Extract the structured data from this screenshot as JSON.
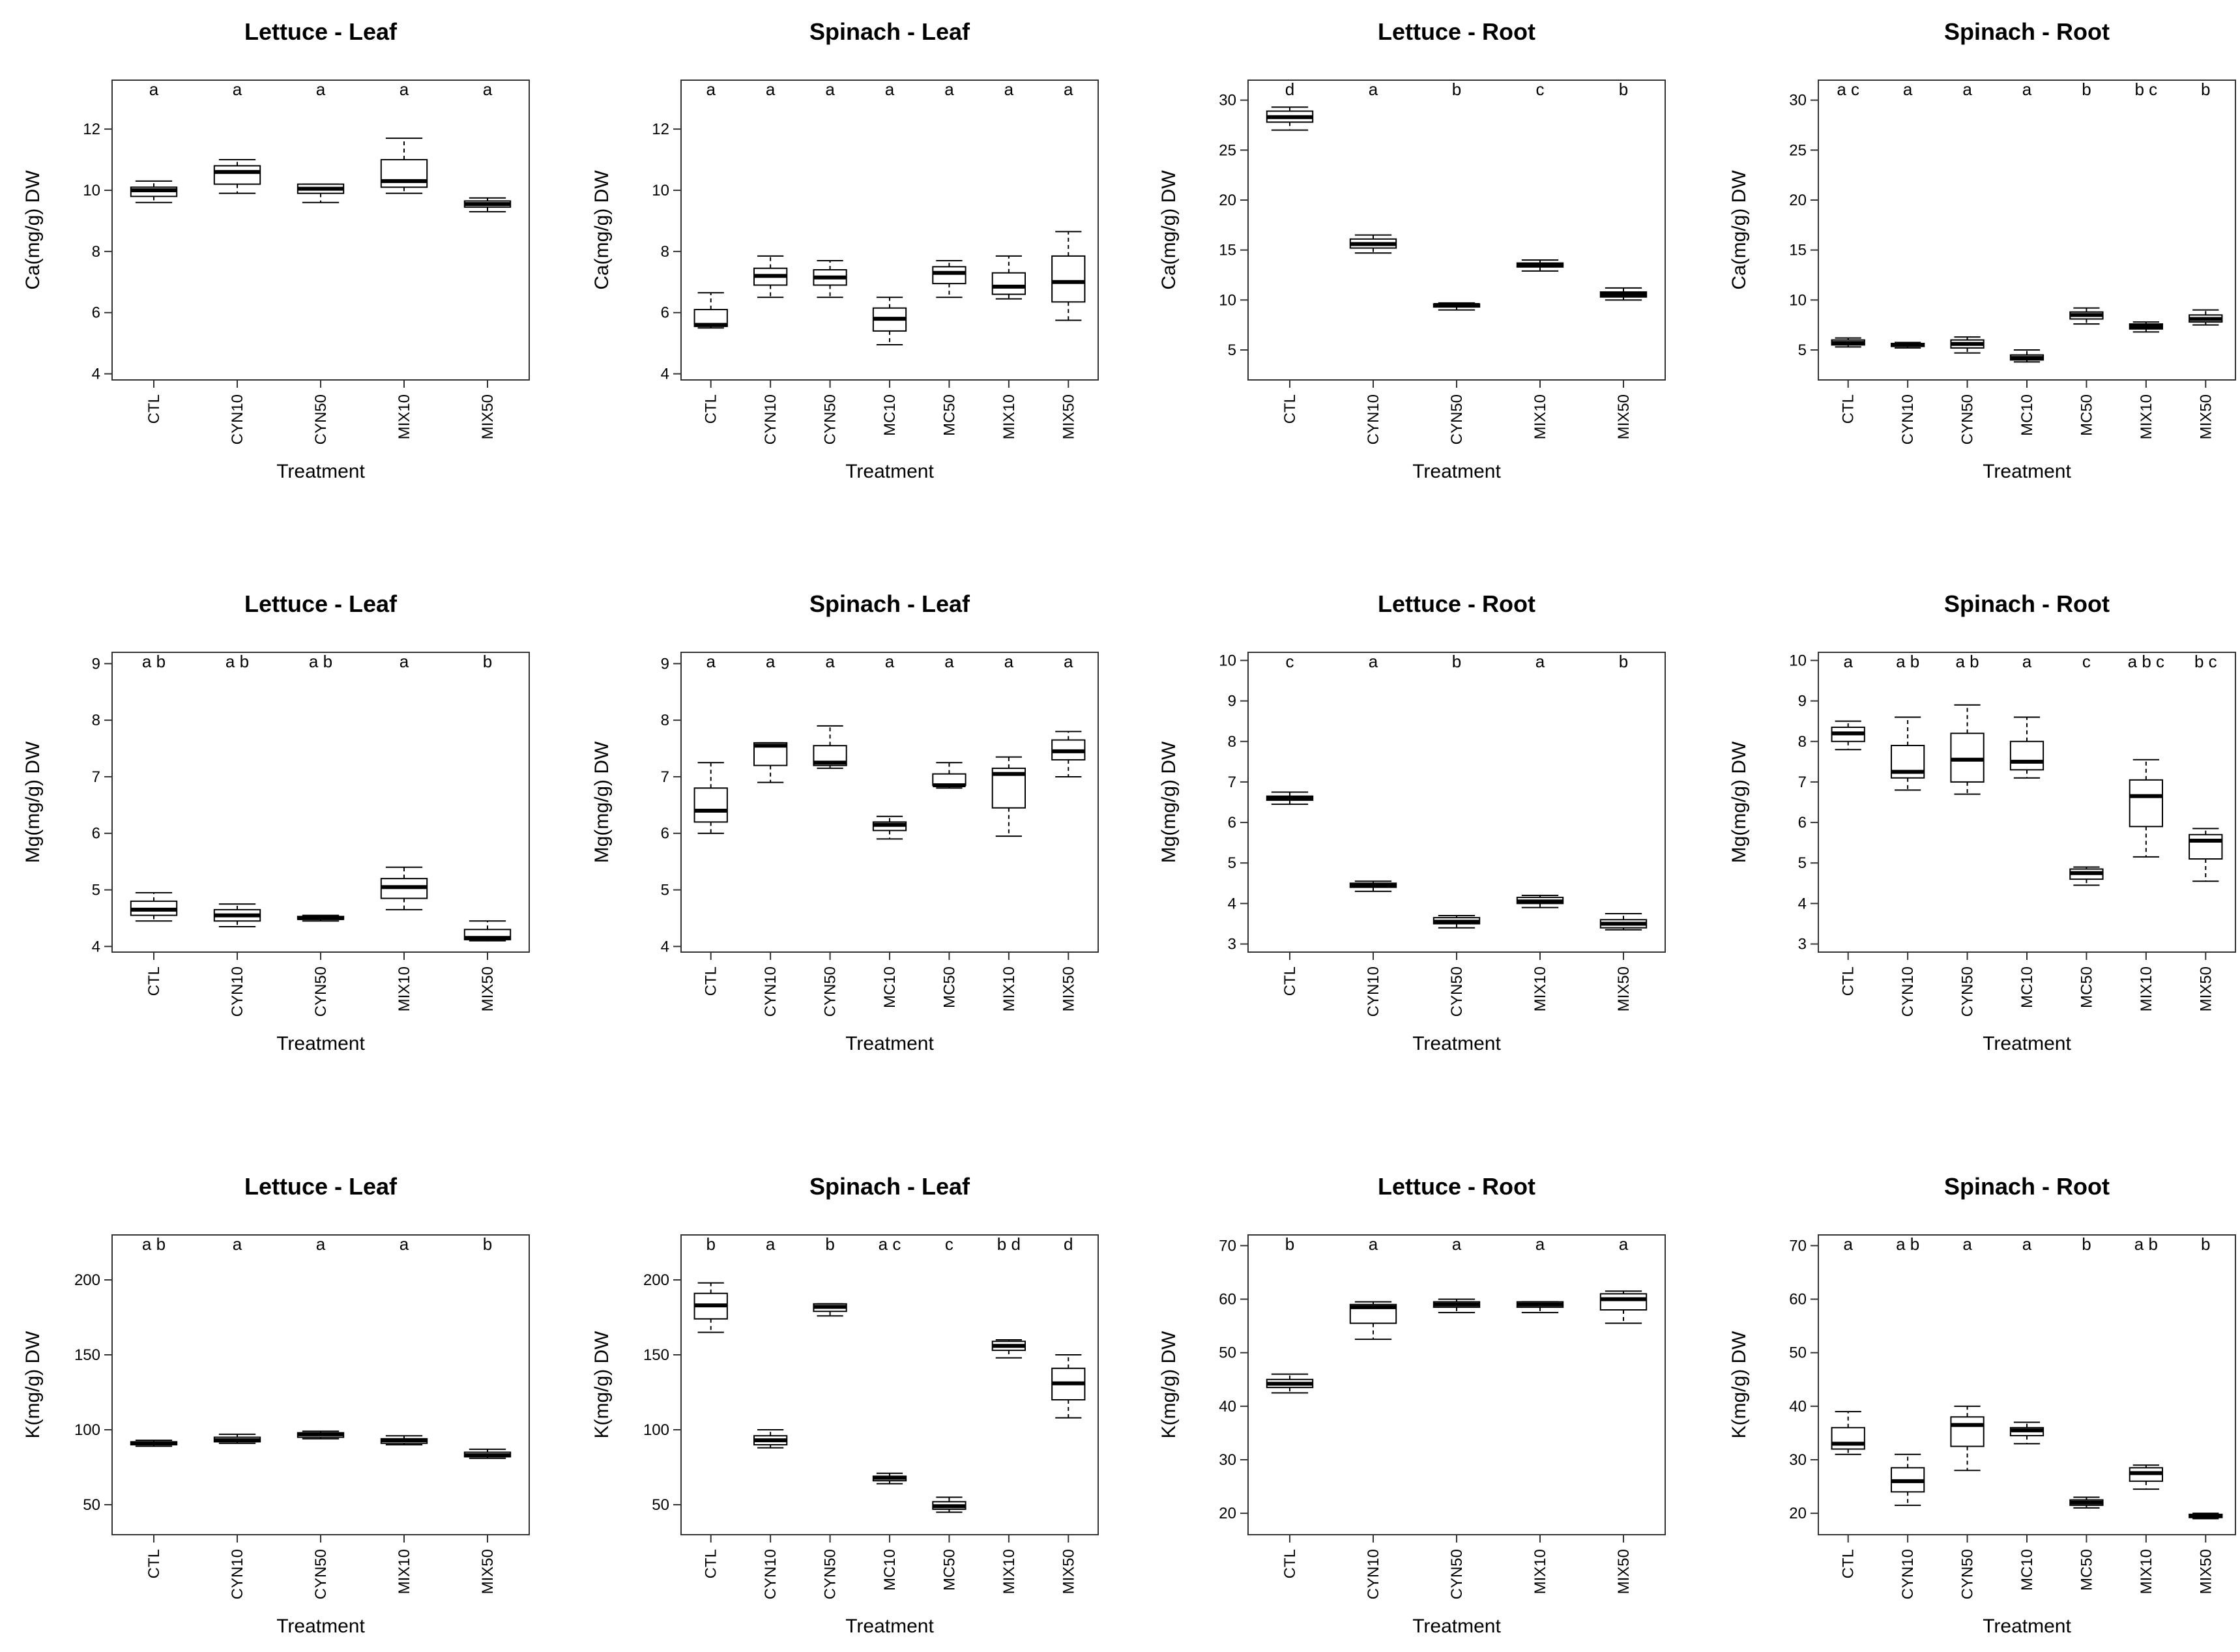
{
  "figure": {
    "description_hidden": ""
  },
  "chart_data": [
    {
      "type": "box",
      "id": "ca-lettuce-leaf",
      "title": "Lettuce - Leaf",
      "xlabel": "Treatment",
      "ylabel": "Ca(mg/g) DW",
      "ylim": [
        3.8,
        13.6
      ],
      "yticks": [
        4,
        6,
        8,
        10,
        12
      ],
      "categories": [
        "CTL",
        "CYN10",
        "CYN50",
        "MIX10",
        "MIX50"
      ],
      "boxes": [
        {
          "min": 9.6,
          "q1": 9.8,
          "median": 10.0,
          "q3": 10.1,
          "max": 10.3
        },
        {
          "min": 9.9,
          "q1": 10.2,
          "median": 10.6,
          "q3": 10.8,
          "max": 11.0
        },
        {
          "min": 9.6,
          "q1": 9.9,
          "median": 10.05,
          "q3": 10.2,
          "max": 10.2
        },
        {
          "min": 9.9,
          "q1": 10.1,
          "median": 10.3,
          "q3": 11.0,
          "max": 11.7
        },
        {
          "min": 9.3,
          "q1": 9.45,
          "median": 9.55,
          "q3": 9.65,
          "max": 9.75
        }
      ],
      "significance": [
        "a",
        "a",
        "a",
        "a",
        "a"
      ]
    },
    {
      "type": "box",
      "id": "ca-spinach-leaf",
      "title": "Spinach - Leaf",
      "xlabel": "Treatment",
      "ylabel": "Ca(mg/g) DW",
      "ylim": [
        3.8,
        13.6
      ],
      "yticks": [
        4,
        6,
        8,
        10,
        12
      ],
      "categories": [
        "CTL",
        "CYN10",
        "CYN50",
        "MC10",
        "MC50",
        "MIX10",
        "MIX50"
      ],
      "boxes": [
        {
          "min": 5.5,
          "q1": 5.55,
          "median": 5.6,
          "q3": 6.1,
          "max": 6.65
        },
        {
          "min": 6.5,
          "q1": 6.9,
          "median": 7.2,
          "q3": 7.45,
          "max": 7.85
        },
        {
          "min": 6.5,
          "q1": 6.9,
          "median": 7.15,
          "q3": 7.4,
          "max": 7.7
        },
        {
          "min": 4.95,
          "q1": 5.4,
          "median": 5.8,
          "q3": 6.15,
          "max": 6.5
        },
        {
          "min": 6.5,
          "q1": 6.95,
          "median": 7.3,
          "q3": 7.5,
          "max": 7.7
        },
        {
          "min": 6.45,
          "q1": 6.6,
          "median": 6.85,
          "q3": 7.3,
          "max": 7.85
        },
        {
          "min": 5.75,
          "q1": 6.35,
          "median": 7.0,
          "q3": 7.85,
          "max": 8.65
        }
      ],
      "significance": [
        "a",
        "a",
        "a",
        "a",
        "a",
        "a",
        "a"
      ]
    },
    {
      "type": "box",
      "id": "ca-lettuce-root",
      "title": "Lettuce - Root",
      "xlabel": "Treatment",
      "ylabel": "Ca(mg/g) DW",
      "ylim": [
        2.0,
        32.0
      ],
      "yticks": [
        5,
        10,
        15,
        20,
        25,
        30
      ],
      "categories": [
        "CTL",
        "CYN10",
        "CYN50",
        "MIX10",
        "MIX50"
      ],
      "boxes": [
        {
          "min": 27.0,
          "q1": 27.8,
          "median": 28.3,
          "q3": 28.9,
          "max": 29.3
        },
        {
          "min": 14.7,
          "q1": 15.2,
          "median": 15.6,
          "q3": 16.1,
          "max": 16.5
        },
        {
          "min": 9.0,
          "q1": 9.3,
          "median": 9.5,
          "q3": 9.6,
          "max": 9.7
        },
        {
          "min": 12.9,
          "q1": 13.3,
          "median": 13.5,
          "q3": 13.7,
          "max": 14.0
        },
        {
          "min": 10.0,
          "q1": 10.3,
          "median": 10.55,
          "q3": 10.8,
          "max": 11.2
        }
      ],
      "significance": [
        "d",
        "a",
        "b",
        "c",
        "b"
      ]
    },
    {
      "type": "box",
      "id": "ca-spinach-root",
      "title": "Spinach - Root",
      "xlabel": "Treatment",
      "ylabel": "Ca(mg/g) DW",
      "ylim": [
        2.0,
        32.0
      ],
      "yticks": [
        5,
        10,
        15,
        20,
        25,
        30
      ],
      "categories": [
        "CTL",
        "CYN10",
        "CYN50",
        "MC10",
        "MC50",
        "MIX10",
        "MIX50"
      ],
      "boxes": [
        {
          "min": 5.3,
          "q1": 5.5,
          "median": 5.7,
          "q3": 6.0,
          "max": 6.2
        },
        {
          "min": 5.2,
          "q1": 5.35,
          "median": 5.5,
          "q3": 5.65,
          "max": 5.75
        },
        {
          "min": 4.7,
          "q1": 5.2,
          "median": 5.6,
          "q3": 6.0,
          "max": 6.3
        },
        {
          "min": 3.8,
          "q1": 4.0,
          "median": 4.2,
          "q3": 4.5,
          "max": 5.0
        },
        {
          "min": 7.6,
          "q1": 8.1,
          "median": 8.5,
          "q3": 8.8,
          "max": 9.2
        },
        {
          "min": 6.8,
          "q1": 7.1,
          "median": 7.35,
          "q3": 7.6,
          "max": 7.8
        },
        {
          "min": 7.5,
          "q1": 7.8,
          "median": 8.1,
          "q3": 8.5,
          "max": 9.0
        }
      ],
      "significance": [
        "a c",
        "a",
        "a",
        "a",
        "b",
        "b c",
        "b"
      ]
    },
    {
      "type": "box",
      "id": "mg-lettuce-leaf",
      "title": "Lettuce - Leaf",
      "xlabel": "Treatment",
      "ylabel": "Mg(mg/g) DW",
      "ylim": [
        3.9,
        9.2
      ],
      "yticks": [
        4,
        5,
        6,
        7,
        8,
        9
      ],
      "categories": [
        "CTL",
        "CYN10",
        "CYN50",
        "MIX10",
        "MIX50"
      ],
      "boxes": [
        {
          "min": 4.45,
          "q1": 4.55,
          "median": 4.65,
          "q3": 4.8,
          "max": 4.95
        },
        {
          "min": 4.35,
          "q1": 4.45,
          "median": 4.55,
          "q3": 4.65,
          "max": 4.75
        },
        {
          "min": 4.45,
          "q1": 4.48,
          "median": 4.5,
          "q3": 4.53,
          "max": 4.55
        },
        {
          "min": 4.65,
          "q1": 4.85,
          "median": 5.05,
          "q3": 5.2,
          "max": 5.4
        },
        {
          "min": 4.1,
          "q1": 4.12,
          "median": 4.15,
          "q3": 4.3,
          "max": 4.45
        }
      ],
      "significance": [
        "a b",
        "a b",
        "a b",
        "a",
        "b"
      ]
    },
    {
      "type": "box",
      "id": "mg-spinach-leaf",
      "title": "Spinach - Leaf",
      "xlabel": "Treatment",
      "ylabel": "Mg(mg/g) DW",
      "ylim": [
        3.9,
        9.2
      ],
      "yticks": [
        4,
        5,
        6,
        7,
        8,
        9
      ],
      "categories": [
        "CTL",
        "CYN10",
        "CYN50",
        "MC10",
        "MC50",
        "MIX10",
        "MIX50"
      ],
      "boxes": [
        {
          "min": 6.0,
          "q1": 6.2,
          "median": 6.4,
          "q3": 6.8,
          "max": 7.25
        },
        {
          "min": 6.9,
          "q1": 7.2,
          "median": 7.55,
          "q3": 7.6,
          "max": 7.6
        },
        {
          "min": 7.15,
          "q1": 7.2,
          "median": 7.25,
          "q3": 7.55,
          "max": 7.9
        },
        {
          "min": 5.9,
          "q1": 6.05,
          "median": 6.15,
          "q3": 6.2,
          "max": 6.3
        },
        {
          "min": 6.8,
          "q1": 6.85,
          "median": 6.85,
          "q3": 7.05,
          "max": 7.25
        },
        {
          "min": 5.95,
          "q1": 6.45,
          "median": 7.05,
          "q3": 7.15,
          "max": 7.35
        },
        {
          "min": 7.0,
          "q1": 7.3,
          "median": 7.45,
          "q3": 7.65,
          "max": 7.8
        }
      ],
      "significance": [
        "a",
        "a",
        "a",
        "a",
        "a",
        "a",
        "a"
      ]
    },
    {
      "type": "box",
      "id": "mg-lettuce-root",
      "title": "Lettuce - Root",
      "xlabel": "Treatment",
      "ylabel": "Mg(mg/g) DW",
      "ylim": [
        2.8,
        10.2
      ],
      "yticks": [
        3,
        4,
        5,
        6,
        7,
        8,
        9,
        10
      ],
      "categories": [
        "CTL",
        "CYN10",
        "CYN50",
        "MIX10",
        "MIX50"
      ],
      "boxes": [
        {
          "min": 6.45,
          "q1": 6.55,
          "median": 6.6,
          "q3": 6.65,
          "max": 6.75
        },
        {
          "min": 4.3,
          "q1": 4.4,
          "median": 4.45,
          "q3": 4.5,
          "max": 4.55
        },
        {
          "min": 3.4,
          "q1": 3.5,
          "median": 3.55,
          "q3": 3.65,
          "max": 3.7
        },
        {
          "min": 3.9,
          "q1": 4.0,
          "median": 4.05,
          "q3": 4.15,
          "max": 4.2
        },
        {
          "min": 3.35,
          "q1": 3.4,
          "median": 3.5,
          "q3": 3.6,
          "max": 3.75
        }
      ],
      "significance": [
        "c",
        "a",
        "b",
        "a",
        "b"
      ]
    },
    {
      "type": "box",
      "id": "mg-spinach-root",
      "title": "Spinach - Root",
      "xlabel": "Treatment",
      "ylabel": "Mg(mg/g) DW",
      "ylim": [
        2.8,
        10.2
      ],
      "yticks": [
        3,
        4,
        5,
        6,
        7,
        8,
        9,
        10
      ],
      "categories": [
        "CTL",
        "CYN10",
        "CYN50",
        "MC10",
        "MC50",
        "MIX10",
        "MIX50"
      ],
      "boxes": [
        {
          "min": 7.8,
          "q1": 8.0,
          "median": 8.2,
          "q3": 8.35,
          "max": 8.5
        },
        {
          "min": 6.8,
          "q1": 7.1,
          "median": 7.25,
          "q3": 7.9,
          "max": 8.6
        },
        {
          "min": 6.7,
          "q1": 7.0,
          "median": 7.55,
          "q3": 8.2,
          "max": 8.9
        },
        {
          "min": 7.1,
          "q1": 7.3,
          "median": 7.5,
          "q3": 8.0,
          "max": 8.6
        },
        {
          "min": 4.45,
          "q1": 4.6,
          "median": 4.75,
          "q3": 4.85,
          "max": 4.9
        },
        {
          "min": 5.15,
          "q1": 5.9,
          "median": 6.65,
          "q3": 7.05,
          "max": 7.55
        },
        {
          "min": 4.55,
          "q1": 5.1,
          "median": 5.55,
          "q3": 5.7,
          "max": 5.85
        }
      ],
      "significance": [
        "a",
        "a b",
        "a b",
        "a",
        "c",
        "a b c",
        "b c"
      ]
    },
    {
      "type": "box",
      "id": "k-lettuce-leaf",
      "title": "Lettuce - Leaf",
      "xlabel": "Treatment",
      "ylabel": "K(mg/g) DW",
      "ylim": [
        30,
        230
      ],
      "yticks": [
        50,
        100,
        150,
        200
      ],
      "categories": [
        "CTL",
        "CYN10",
        "CYN50",
        "MIX10",
        "MIX50"
      ],
      "boxes": [
        {
          "min": 89,
          "q1": 90,
          "median": 91,
          "q3": 92,
          "max": 93
        },
        {
          "min": 91,
          "q1": 92,
          "median": 93,
          "q3": 95,
          "max": 97
        },
        {
          "min": 94,
          "q1": 95,
          "median": 97,
          "q3": 98,
          "max": 99
        },
        {
          "min": 90,
          "q1": 91,
          "median": 93,
          "q3": 94,
          "max": 96
        },
        {
          "min": 81,
          "q1": 82,
          "median": 83,
          "q3": 85,
          "max": 87
        }
      ],
      "significance": [
        "a b",
        "a",
        "a",
        "a",
        "b"
      ]
    },
    {
      "type": "box",
      "id": "k-spinach-leaf",
      "title": "Spinach - Leaf",
      "xlabel": "Treatment",
      "ylabel": "K(mg/g) DW",
      "ylim": [
        30,
        230
      ],
      "yticks": [
        50,
        100,
        150,
        200
      ],
      "categories": [
        "CTL",
        "CYN10",
        "CYN50",
        "MC10",
        "MC50",
        "MIX10",
        "MIX50"
      ],
      "boxes": [
        {
          "min": 165,
          "q1": 174,
          "median": 183,
          "q3": 191,
          "max": 198
        },
        {
          "min": 88,
          "q1": 90,
          "median": 93,
          "q3": 96,
          "max": 100
        },
        {
          "min": 176,
          "q1": 179,
          "median": 182,
          "q3": 184,
          "max": 184
        },
        {
          "min": 64,
          "q1": 66,
          "median": 68,
          "q3": 69,
          "max": 71
        },
        {
          "min": 45,
          "q1": 47,
          "median": 49,
          "q3": 52,
          "max": 55
        },
        {
          "min": 148,
          "q1": 153,
          "median": 156,
          "q3": 159,
          "max": 160
        },
        {
          "min": 108,
          "q1": 120,
          "median": 131,
          "q3": 141,
          "max": 150
        }
      ],
      "significance": [
        "b",
        "a",
        "b",
        "a c",
        "c",
        "b d",
        "d"
      ]
    },
    {
      "type": "box",
      "id": "k-lettuce-root",
      "title": "Lettuce - Root",
      "xlabel": "Treatment",
      "ylabel": "K(mg/g) DW",
      "ylim": [
        16,
        72
      ],
      "yticks": [
        20,
        30,
        40,
        50,
        60,
        70
      ],
      "categories": [
        "CTL",
        "CYN10",
        "CYN50",
        "MIX10",
        "MIX50"
      ],
      "boxes": [
        {
          "min": 42.5,
          "q1": 43.5,
          "median": 44.2,
          "q3": 45,
          "max": 46
        },
        {
          "min": 52.5,
          "q1": 55.5,
          "median": 58.5,
          "q3": 59,
          "max": 59.5
        },
        {
          "min": 57.5,
          "q1": 58.5,
          "median": 59,
          "q3": 59.5,
          "max": 60
        },
        {
          "min": 57.5,
          "q1": 58.5,
          "median": 59,
          "q3": 59.5,
          "max": 59.5
        },
        {
          "min": 55.5,
          "q1": 58,
          "median": 60,
          "q3": 61,
          "max": 61.5
        }
      ],
      "significance": [
        "b",
        "a",
        "a",
        "a",
        "a"
      ]
    },
    {
      "type": "box",
      "id": "k-spinach-root",
      "title": "Spinach - Root",
      "xlabel": "Treatment",
      "ylabel": "K(mg/g) DW",
      "ylim": [
        16,
        72
      ],
      "yticks": [
        20,
        30,
        40,
        50,
        60,
        70
      ],
      "categories": [
        "CTL",
        "CYN10",
        "CYN50",
        "MC10",
        "MC50",
        "MIX10",
        "MIX50"
      ],
      "boxes": [
        {
          "min": 31,
          "q1": 32,
          "median": 33,
          "q3": 36,
          "max": 39
        },
        {
          "min": 21.5,
          "q1": 24,
          "median": 26,
          "q3": 28.5,
          "max": 31
        },
        {
          "min": 28,
          "q1": 32.5,
          "median": 36.5,
          "q3": 38,
          "max": 40
        },
        {
          "min": 33,
          "q1": 34.5,
          "median": 35.5,
          "q3": 36,
          "max": 37
        },
        {
          "min": 21,
          "q1": 21.5,
          "median": 22,
          "q3": 22.5,
          "max": 23
        },
        {
          "min": 24.5,
          "q1": 26,
          "median": 27.5,
          "q3": 28.5,
          "max": 29
        },
        {
          "min": 19,
          "q1": 19.2,
          "median": 19.5,
          "q3": 19.8,
          "max": 20
        }
      ],
      "significance": [
        "a",
        "a b",
        "a",
        "a",
        "b",
        "a b",
        "b"
      ]
    }
  ]
}
